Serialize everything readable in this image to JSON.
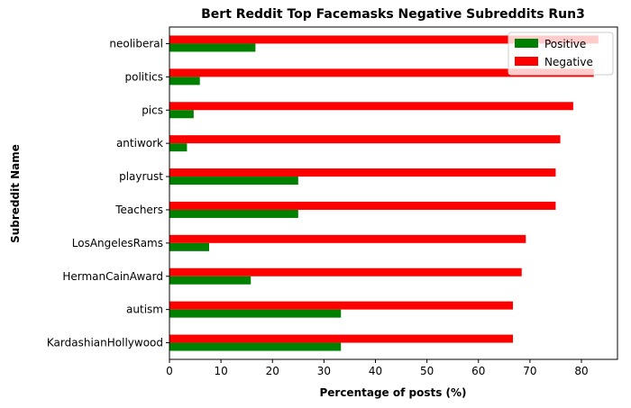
{
  "chart_data": {
    "type": "bar",
    "orientation": "horizontal",
    "title": "Bert Reddit Top Facemasks Negative Subreddits Run3",
    "xlabel": "Percentage of posts (%)",
    "ylabel": "Subreddit Name",
    "xlim": [
      0,
      87
    ],
    "xticks": [
      0,
      10,
      20,
      30,
      40,
      50,
      60,
      70,
      80
    ],
    "categories": [
      "KardashianHollywood",
      "autism",
      "HermanCainAward",
      "LosAngelesRams",
      "Teachers",
      "playrust",
      "antiwork",
      "pics",
      "politics",
      "neoliberal"
    ],
    "series": [
      {
        "name": "Positive",
        "color": "#008000",
        "values": [
          33.3,
          33.3,
          15.8,
          7.7,
          25.0,
          25.0,
          3.4,
          4.7,
          5.9,
          16.7
        ]
      },
      {
        "name": "Negative",
        "color": "#ff0000",
        "values": [
          66.7,
          66.7,
          68.4,
          69.2,
          75.0,
          75.0,
          75.9,
          78.4,
          82.4,
          83.3
        ]
      }
    ],
    "legend": {
      "position": "top-right",
      "entries": [
        "Positive",
        "Negative"
      ]
    },
    "grid": false
  }
}
